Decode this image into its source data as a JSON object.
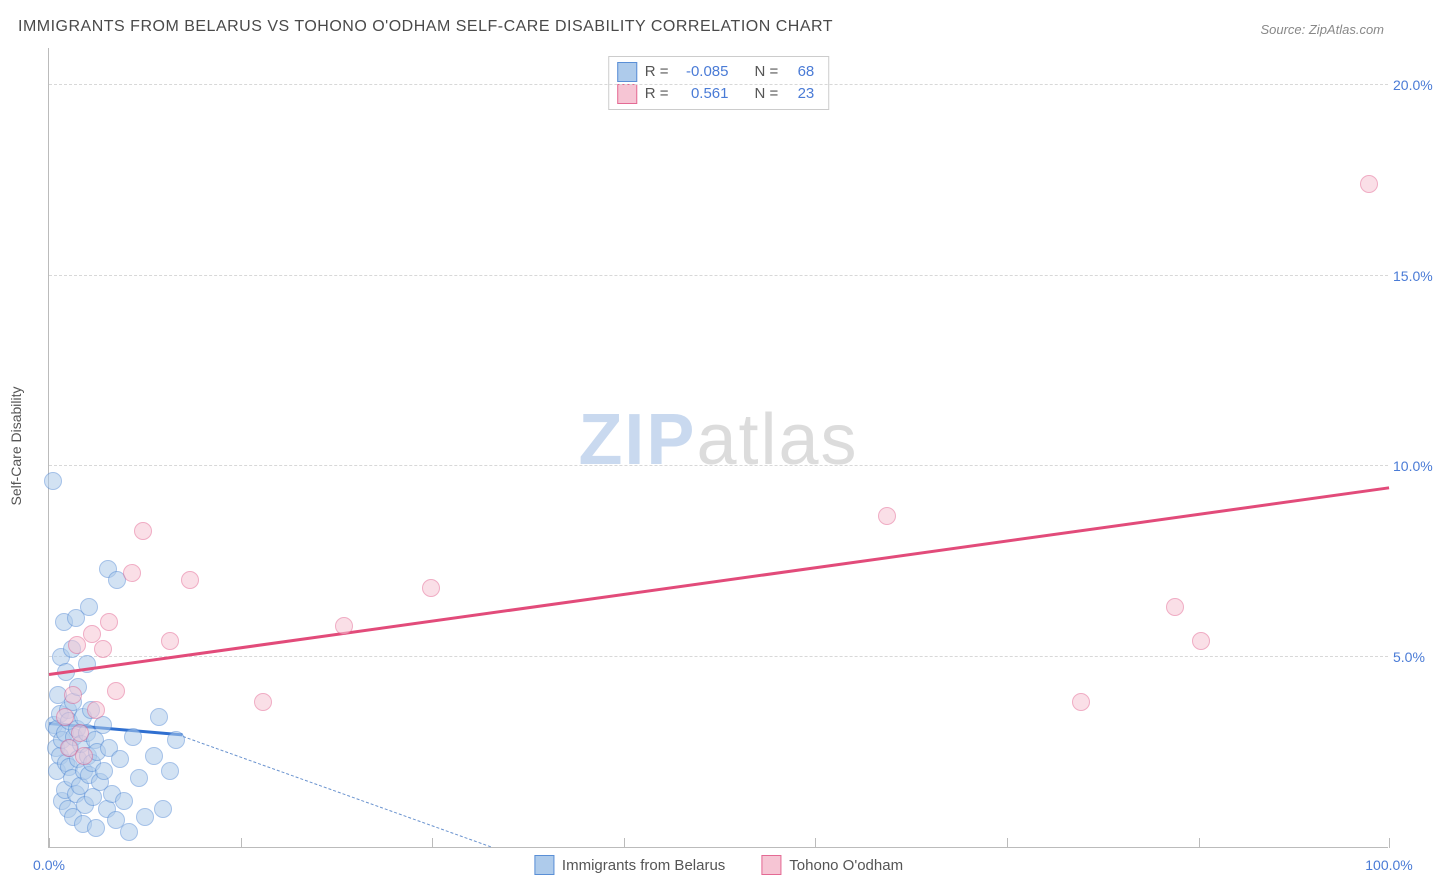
{
  "title": "IMMIGRANTS FROM BELARUS VS TOHONO O'ODHAM SELF-CARE DISABILITY CORRELATION CHART",
  "source": "Source: ZipAtlas.com",
  "ylabel": "Self-Care Disability",
  "watermark": {
    "part1": "ZIP",
    "part2": "atlas"
  },
  "chart": {
    "type": "scatter",
    "xlim": [
      0,
      100
    ],
    "ylim": [
      0,
      21
    ],
    "ytick_values": [
      5,
      10,
      15,
      20
    ],
    "ytick_labels": [
      "5.0%",
      "10.0%",
      "15.0%",
      "20.0%"
    ],
    "xtick_values": [
      0,
      14.3,
      28.6,
      42.9,
      57.2,
      71.5,
      85.8,
      100
    ],
    "xtick_left_label": "0.0%",
    "xtick_right_label": "100.0%",
    "grid_color": "#d8d8d8",
    "background_color": "#ffffff",
    "series": [
      {
        "name": "Immigrants from Belarus",
        "fill": "#aecbeb",
        "stroke": "#5a8fd6",
        "marker_radius": 9,
        "fill_opacity": 0.55,
        "r_value": "-0.085",
        "n_value": "68",
        "trend": {
          "x1": 0,
          "y1": 3.2,
          "x2": 10,
          "y2": 2.9,
          "color": "#2f6fd0",
          "width": 3,
          "dash": false
        },
        "trend_ext": {
          "x1": 10,
          "y1": 2.9,
          "x2": 33,
          "y2": 0,
          "color": "#6a93cf",
          "width": 1.5,
          "dash": true
        },
        "points": [
          [
            0.3,
            9.6
          ],
          [
            0.4,
            3.2
          ],
          [
            0.5,
            2.6
          ],
          [
            0.6,
            3.1
          ],
          [
            0.6,
            2.0
          ],
          [
            0.7,
            4.0
          ],
          [
            0.8,
            3.5
          ],
          [
            0.8,
            2.4
          ],
          [
            0.9,
            5.0
          ],
          [
            1.0,
            2.8
          ],
          [
            1.0,
            1.2
          ],
          [
            1.1,
            5.9
          ],
          [
            1.2,
            3.0
          ],
          [
            1.2,
            1.5
          ],
          [
            1.3,
            2.2
          ],
          [
            1.3,
            4.6
          ],
          [
            1.4,
            3.6
          ],
          [
            1.4,
            1.0
          ],
          [
            1.5,
            2.1
          ],
          [
            1.5,
            3.3
          ],
          [
            1.6,
            2.6
          ],
          [
            1.7,
            5.2
          ],
          [
            1.7,
            1.8
          ],
          [
            1.8,
            3.8
          ],
          [
            1.8,
            0.8
          ],
          [
            1.9,
            2.9
          ],
          [
            2.0,
            6.0
          ],
          [
            2.0,
            1.4
          ],
          [
            2.1,
            3.1
          ],
          [
            2.2,
            2.3
          ],
          [
            2.2,
            4.2
          ],
          [
            2.3,
            1.6
          ],
          [
            2.4,
            2.7
          ],
          [
            2.5,
            3.4
          ],
          [
            2.5,
            0.6
          ],
          [
            2.6,
            2.0
          ],
          [
            2.7,
            1.1
          ],
          [
            2.8,
            3.0
          ],
          [
            2.8,
            4.8
          ],
          [
            2.9,
            2.4
          ],
          [
            3.0,
            1.9
          ],
          [
            3.1,
            3.6
          ],
          [
            3.2,
            2.2
          ],
          [
            3.3,
            1.3
          ],
          [
            3.4,
            2.8
          ],
          [
            3.5,
            0.5
          ],
          [
            3.6,
            2.5
          ],
          [
            3.8,
            1.7
          ],
          [
            4.0,
            3.2
          ],
          [
            4.1,
            2.0
          ],
          [
            4.3,
            1.0
          ],
          [
            4.5,
            2.6
          ],
          [
            4.7,
            1.4
          ],
          [
            5.0,
            0.7
          ],
          [
            5.3,
            2.3
          ],
          [
            5.6,
            1.2
          ],
          [
            6.0,
            0.4
          ],
          [
            6.3,
            2.9
          ],
          [
            6.7,
            1.8
          ],
          [
            7.2,
            0.8
          ],
          [
            7.8,
            2.4
          ],
          [
            8.2,
            3.4
          ],
          [
            8.5,
            1.0
          ],
          [
            9.0,
            2.0
          ],
          [
            4.4,
            7.3
          ],
          [
            5.1,
            7.0
          ],
          [
            3.0,
            6.3
          ],
          [
            9.5,
            2.8
          ]
        ]
      },
      {
        "name": "Tohono O'odham",
        "fill": "#f6c5d4",
        "stroke": "#e46a94",
        "marker_radius": 9,
        "fill_opacity": 0.55,
        "r_value": "0.561",
        "n_value": "23",
        "trend": {
          "x1": 0,
          "y1": 4.5,
          "x2": 100,
          "y2": 9.4,
          "color": "#e24b7a",
          "width": 3,
          "dash": false
        },
        "points": [
          [
            1.2,
            3.4
          ],
          [
            1.5,
            2.6
          ],
          [
            1.8,
            4.0
          ],
          [
            2.1,
            5.3
          ],
          [
            2.3,
            3.0
          ],
          [
            2.6,
            2.4
          ],
          [
            3.2,
            5.6
          ],
          [
            3.5,
            3.6
          ],
          [
            4.0,
            5.2
          ],
          [
            5.0,
            4.1
          ],
          [
            6.2,
            7.2
          ],
          [
            7.0,
            8.3
          ],
          [
            9.0,
            5.4
          ],
          [
            10.5,
            7.0
          ],
          [
            16.0,
            3.8
          ],
          [
            22.0,
            5.8
          ],
          [
            28.5,
            6.8
          ],
          [
            62.5,
            8.7
          ],
          [
            77.0,
            3.8
          ],
          [
            86.0,
            5.4
          ],
          [
            84.0,
            6.3
          ],
          [
            98.5,
            17.4
          ],
          [
            4.5,
            5.9
          ]
        ]
      }
    ]
  },
  "corr_legend_labels": {
    "r": "R =",
    "n": "N ="
  },
  "bottom_legend": {
    "a": "Immigrants from Belarus",
    "b": "Tohono O'odham"
  }
}
